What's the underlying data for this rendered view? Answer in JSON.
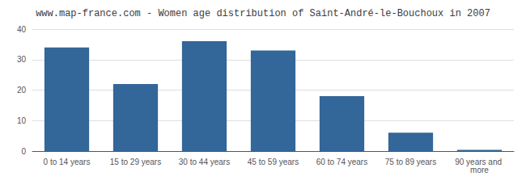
{
  "chart_data": {
    "type": "bar",
    "title": "www.map-france.com - Women age distribution of Saint-André-le-Bouchoux in 2007",
    "categories": [
      "0 to 14 years",
      "15 to 29 years",
      "30 to 44 years",
      "45 to 59 years",
      "60 to 74 years",
      "75 to 89 years",
      "90 years and more"
    ],
    "values": [
      34,
      22,
      36,
      33,
      18,
      6,
      0.4
    ],
    "color": "#336699",
    "ylim": [
      0,
      40
    ],
    "yticks": [
      0,
      10,
      20,
      30,
      40
    ],
    "grid": true
  }
}
